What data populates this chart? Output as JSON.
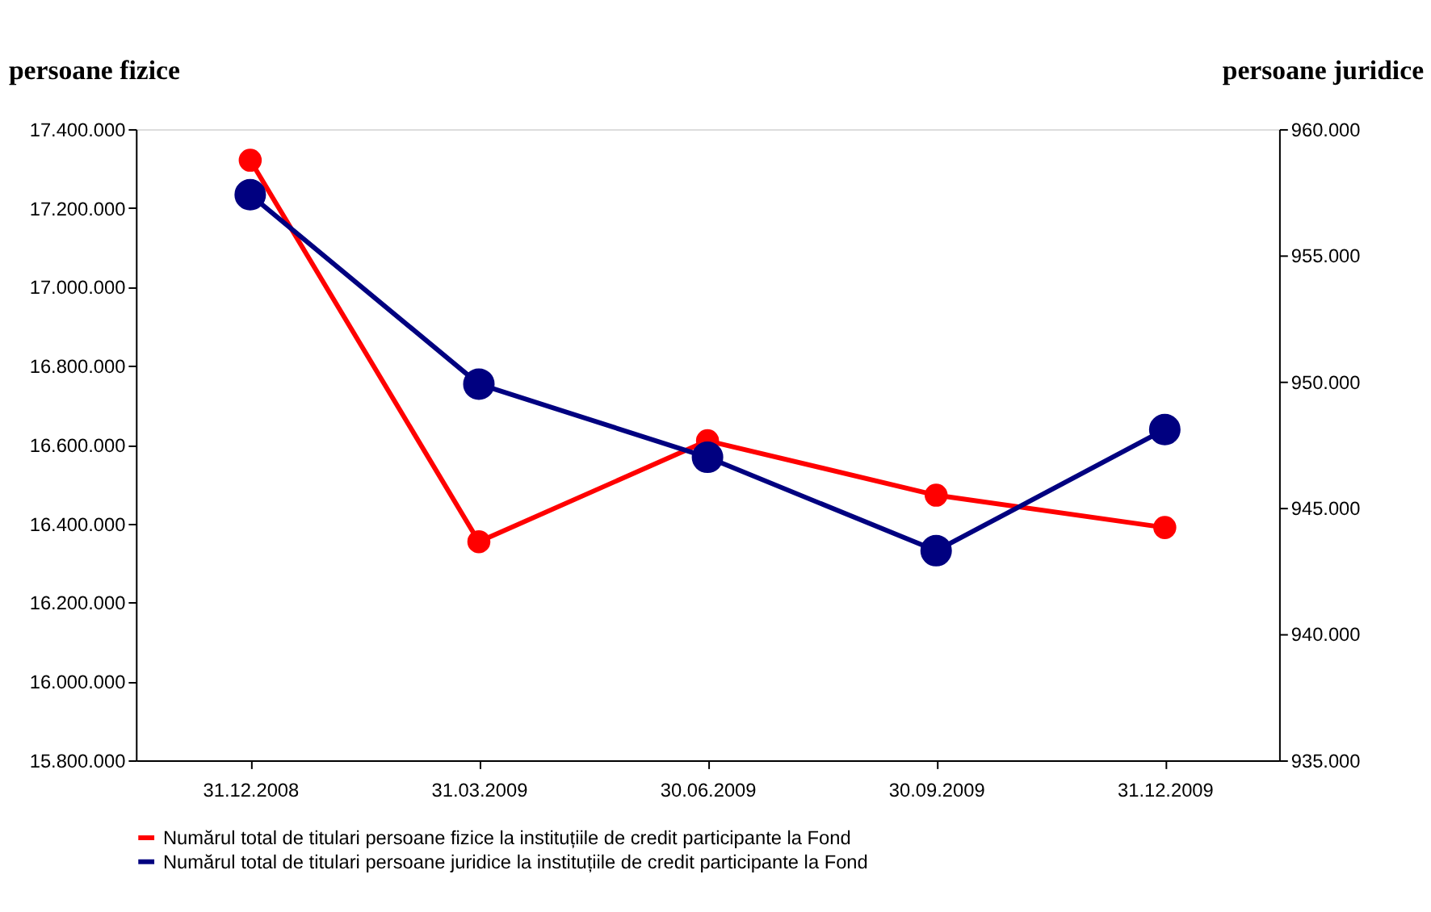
{
  "chart_data": {
    "type": "line",
    "ylabel": "persoane fizice",
    "y2label": "persoane juridice",
    "categories": [
      "31.12.2008",
      "31.03.2009",
      "30.06.2009",
      "30.09.2009",
      "31.12.2009"
    ],
    "series": [
      {
        "name": "Numărul total de titulari persoane fizice la instituțiile de credit participante la  Fond",
        "color": "#ff0000",
        "values": [
          17321000,
          16354000,
          16610000,
          16472000,
          16390000
        ]
      },
      {
        "name": "Numărul total de titulari persoane juridice la instituțiile de credit participante la Fond",
        "color": "#000080",
        "axis": "y2",
        "values": [
          957400,
          949900,
          947000,
          943300,
          948100
        ]
      }
    ],
    "ylim": [
      15800000,
      17400000
    ],
    "yticks": [
      {
        "value": 15800000,
        "label": "15.800.000"
      },
      {
        "value": 16000000,
        "label": "16.000.000"
      },
      {
        "value": 16200000,
        "label": "16.200.000"
      },
      {
        "value": 16400000,
        "label": "16.400.000"
      },
      {
        "value": 16600000,
        "label": "16.600.000"
      },
      {
        "value": 16800000,
        "label": "16.800.000"
      },
      {
        "value": 17000000,
        "label": "17.000.000"
      },
      {
        "value": 17200000,
        "label": "17.200.000"
      },
      {
        "value": 17400000,
        "label": "17.400.000"
      }
    ],
    "y2lim": [
      935000,
      960000
    ],
    "y2ticks": [
      {
        "value": 935000,
        "label": "935.000"
      },
      {
        "value": 940000,
        "label": "940.000"
      },
      {
        "value": 945000,
        "label": "945.000"
      },
      {
        "value": 950000,
        "label": "950.000"
      },
      {
        "value": 955000,
        "label": "955.000"
      },
      {
        "value": 960000,
        "label": "960.000"
      }
    ],
    "marker": "circle",
    "line_style": "solid",
    "grid": false,
    "legend": "bottom"
  }
}
